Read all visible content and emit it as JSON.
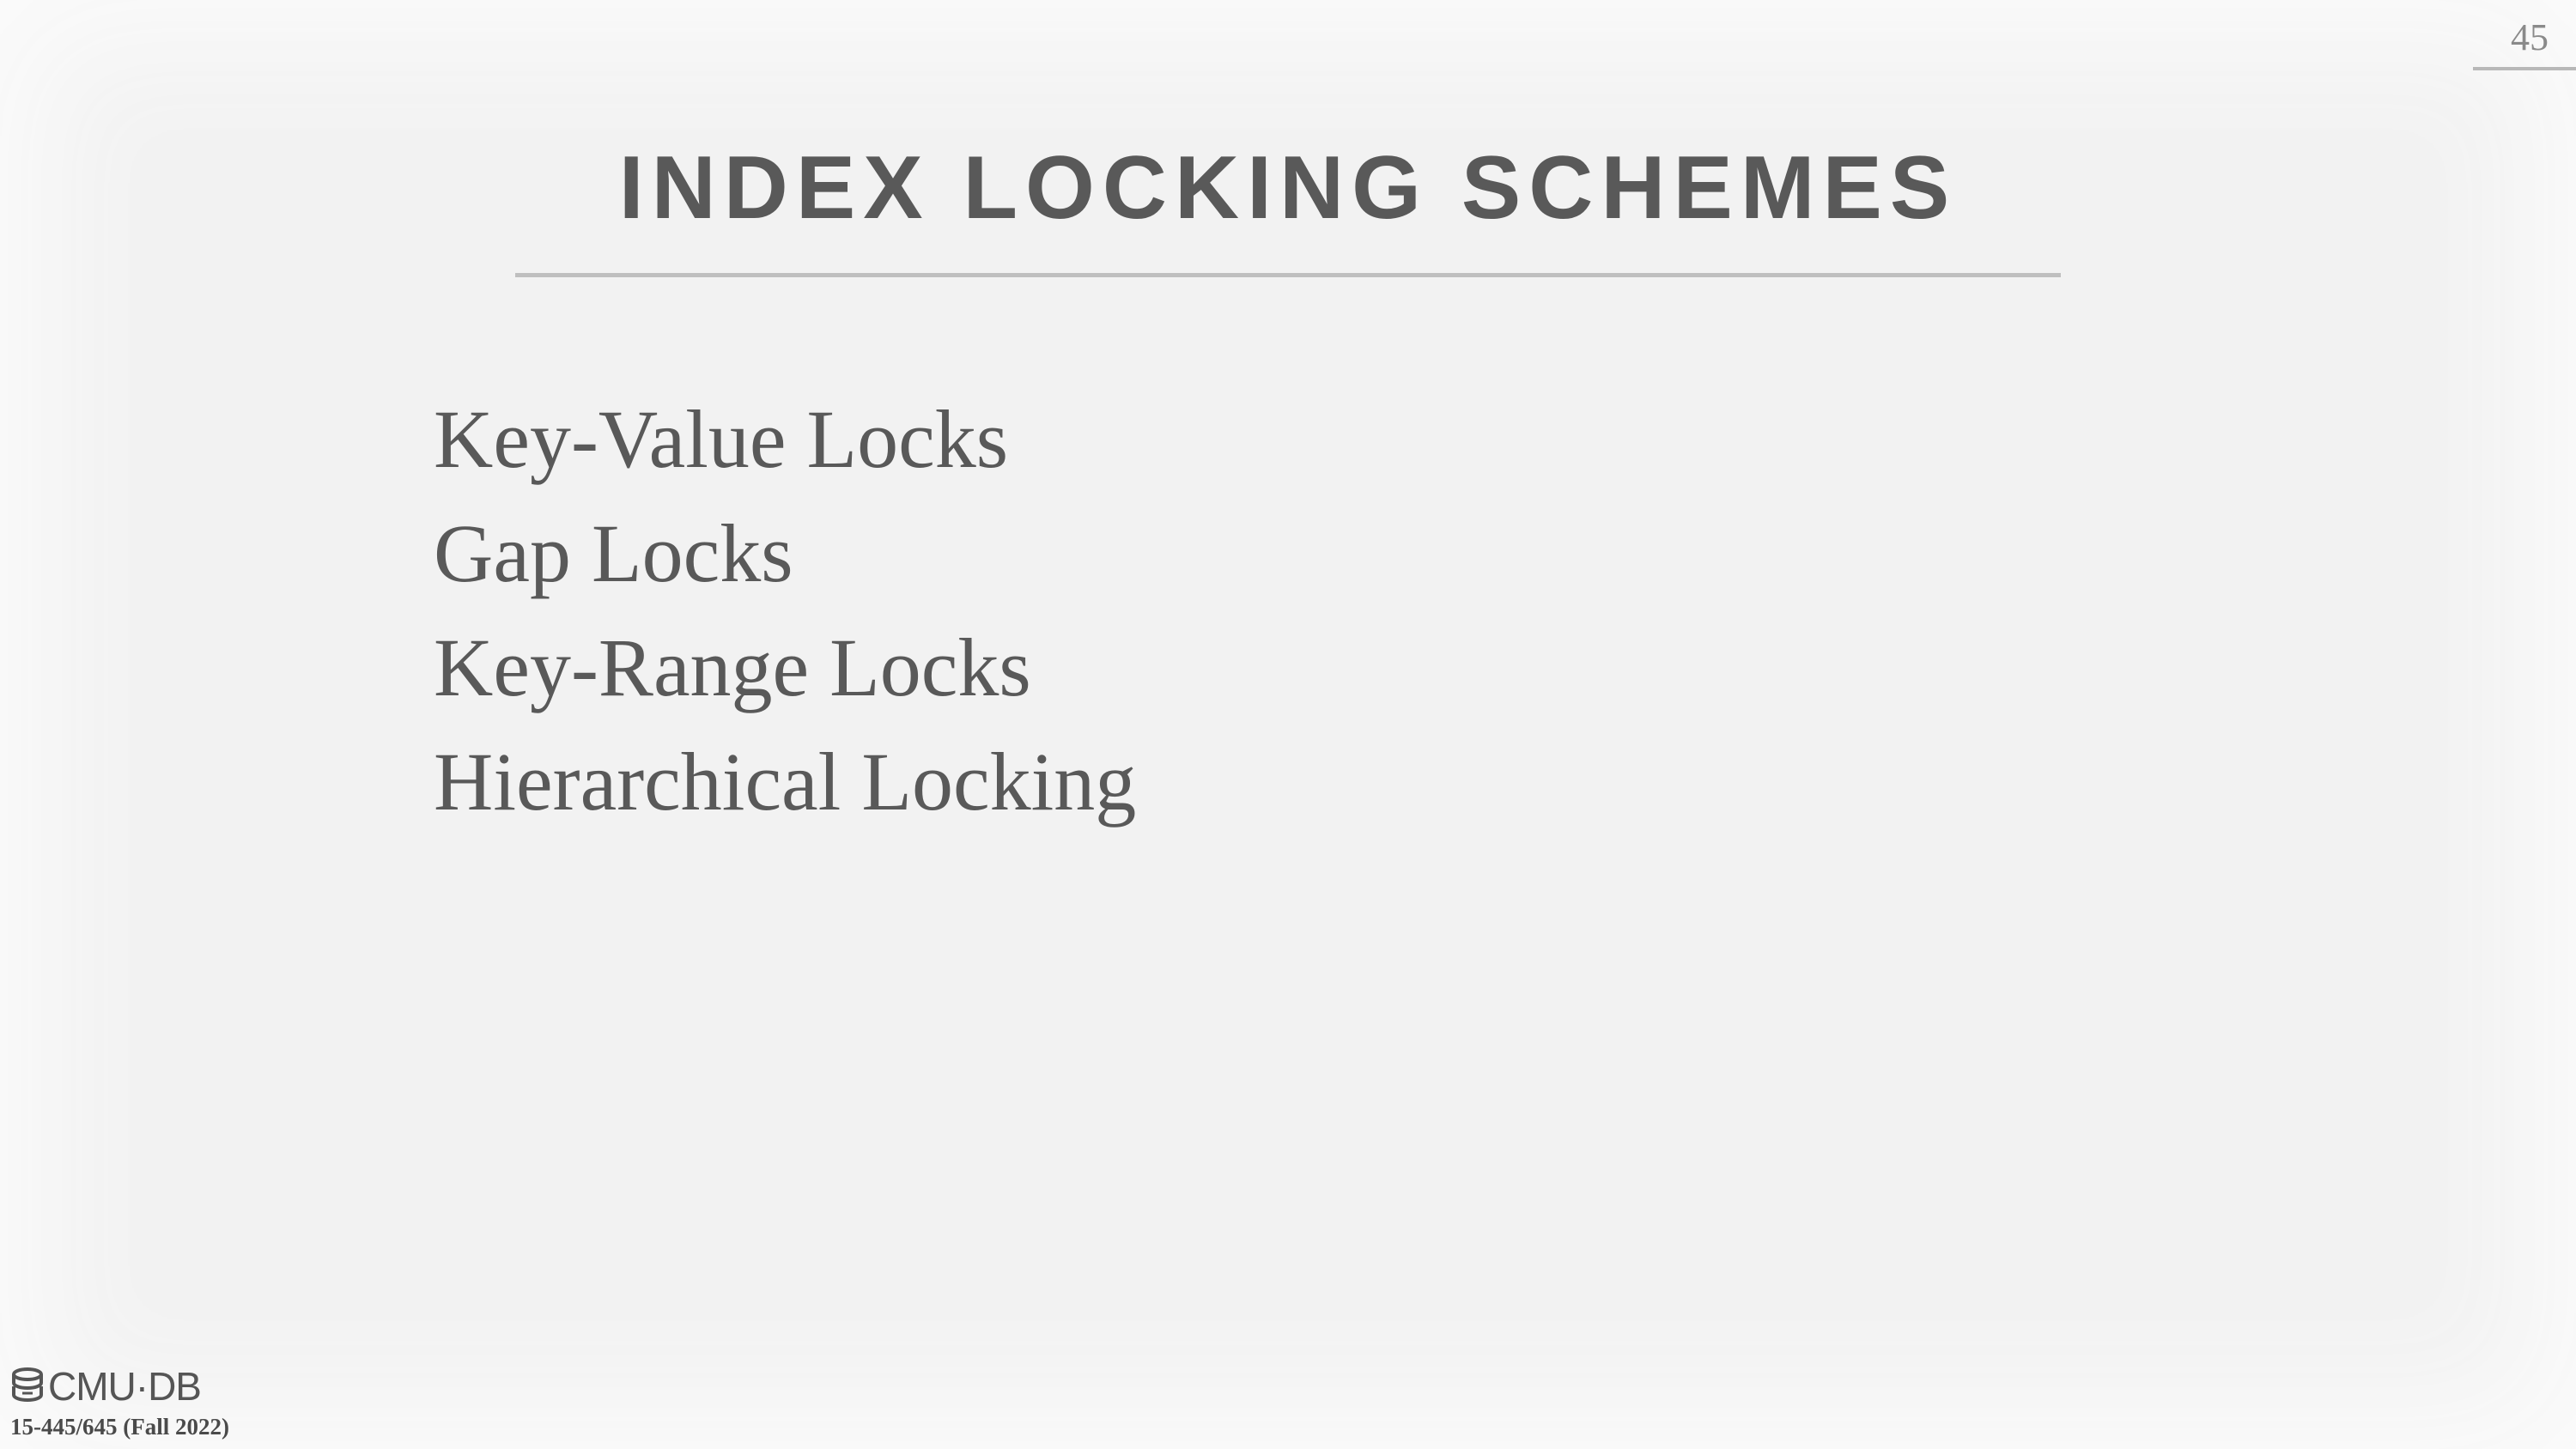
{
  "slide": {
    "page_number": "45",
    "title": "INDEX LOCKING SCHEMES",
    "bullets": [
      "Key-Value Locks",
      "Gap Locks",
      "Key-Range Locks",
      "Hierarchical Locking"
    ]
  },
  "footer": {
    "logo_icon": "database-icon",
    "logo_text": "CMU·DB",
    "course": "15-445/645 (Fall 2022)"
  },
  "colors": {
    "background": "#f2f2f2",
    "text": "#595959",
    "rule": "#bfbfbf"
  }
}
